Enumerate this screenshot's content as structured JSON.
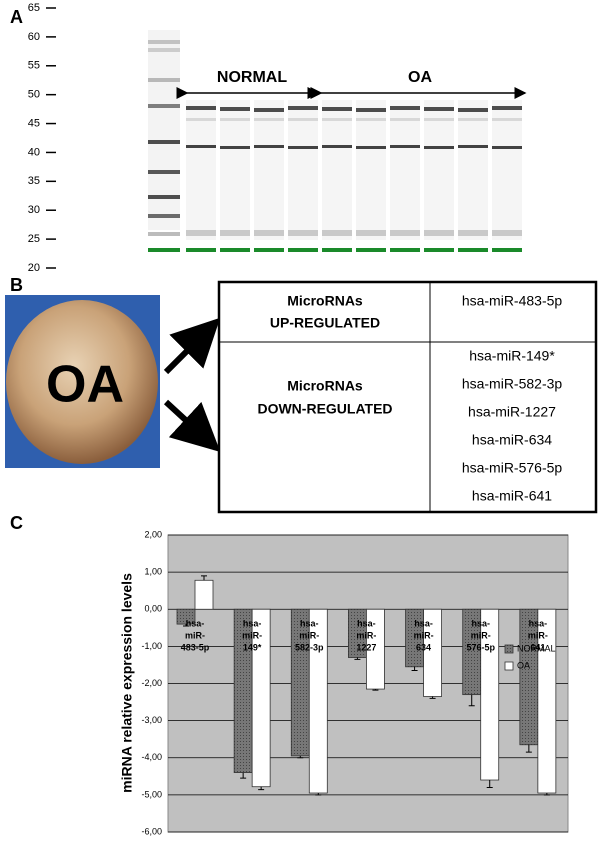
{
  "panel_labels": {
    "a": "A",
    "b": "B",
    "c": "C"
  },
  "gel": {
    "ylim": [
      20,
      65
    ],
    "yticks": [
      20,
      25,
      30,
      35,
      40,
      45,
      50,
      55,
      60,
      65
    ],
    "groups": [
      "NORMAL",
      "OA"
    ]
  },
  "photo": {
    "label": "OA"
  },
  "table": {
    "rows": [
      {
        "label": [
          "MicroRNAs",
          "UP-REGULATED"
        ],
        "items": [
          "hsa-miR-483-5p"
        ]
      },
      {
        "label": [
          "MicroRNAs",
          "DOWN-REGULATED"
        ],
        "items": [
          "hsa-miR-149*",
          "hsa-miR-582-3p",
          "hsa-miR-1227",
          "hsa-miR-634",
          "hsa-miR-576-5p",
          "hsa-miR-641"
        ]
      }
    ]
  },
  "chart_data": {
    "type": "bar",
    "y_label": "miRNA relative expression levels",
    "categories": [
      [
        "hsa-",
        "miR-",
        "483-5p"
      ],
      [
        "hsa-",
        "miR-",
        "149*"
      ],
      [
        "hsa-",
        "miR-",
        "582-3p"
      ],
      [
        "hsa-",
        "miR-",
        "1227"
      ],
      [
        "hsa-",
        "miR-",
        "634"
      ],
      [
        "hsa-",
        "miR-",
        "576-5p"
      ],
      [
        "hsa-",
        "miR-",
        "641"
      ]
    ],
    "series": [
      {
        "name": "NORMAL",
        "color": "#6e6e6e",
        "values": [
          -0.4,
          -4.4,
          -3.95,
          -1.3,
          -1.55,
          -2.3,
          -3.65
        ],
        "errors": [
          0.05,
          0.15,
          0.05,
          0.05,
          0.1,
          0.3,
          0.2
        ]
      },
      {
        "name": "OA",
        "color": "#ffffff",
        "values": [
          0.78,
          -4.78,
          -4.95,
          -2.15,
          -2.35,
          -4.6,
          -4.95
        ],
        "errors": [
          0.12,
          0.08,
          0.05,
          0.03,
          0.05,
          0.2,
          0.05
        ]
      }
    ],
    "ylim": [
      -6,
      2
    ],
    "yticks": [
      {
        "value": 2,
        "label": "2,00"
      },
      {
        "value": 1,
        "label": "1,00"
      },
      {
        "value": 0,
        "label": "0,00"
      },
      {
        "value": -1,
        "label": "-1,00"
      },
      {
        "value": -2,
        "label": "-2,00"
      },
      {
        "value": -3,
        "label": "-3,00"
      },
      {
        "value": -4,
        "label": "-4,00"
      },
      {
        "value": -5,
        "label": "-5,00"
      },
      {
        "value": -6,
        "label": "-6,00"
      }
    ],
    "grid": true,
    "legend": "right"
  }
}
